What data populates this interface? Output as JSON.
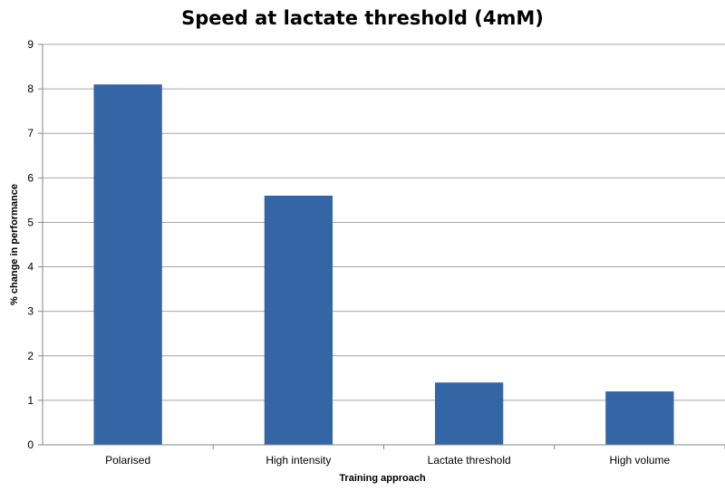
{
  "chart_data": {
    "type": "bar",
    "title": "Speed at lactate threshold (4mM)",
    "xlabel": "Training approach",
    "ylabel": "% change in performance",
    "categories": [
      "Polarised",
      "High intensity",
      "Lactate threshold",
      "High volume"
    ],
    "values": [
      8.1,
      5.6,
      1.4,
      1.2
    ],
    "ylim": [
      0,
      9
    ],
    "yticks": [
      "0",
      "1",
      "2",
      "3",
      "4",
      "5",
      "6",
      "7",
      "8",
      "9"
    ],
    "grid": true,
    "legend": "none",
    "colors": {
      "bar": "#3465a4",
      "grid": "#a6a6a6",
      "axis": "#868686"
    }
  }
}
